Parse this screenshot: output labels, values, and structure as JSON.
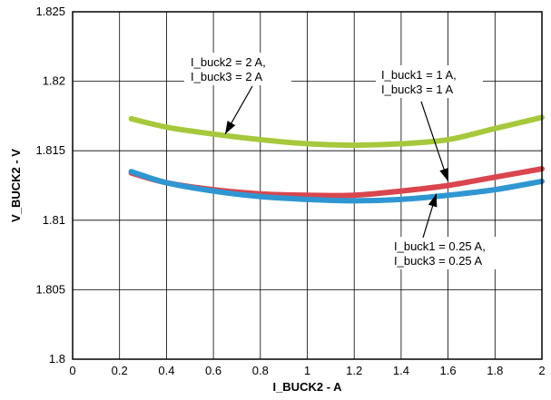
{
  "chart_data": {
    "type": "line",
    "xlabel": "I_BUCK2 - A",
    "ylabel": "V_BUCK2 - V",
    "xlim": [
      0,
      2
    ],
    "ylim": [
      1.8,
      1.825
    ],
    "x_ticks": [
      "0",
      "0.2",
      "0.4",
      "0.6",
      "0.8",
      "1",
      "1.2",
      "1.4",
      "1.6",
      "1.8",
      "2"
    ],
    "y_ticks": [
      "1.8",
      "1.805",
      "1.81",
      "1.815",
      "1.82",
      "1.825"
    ],
    "grid": true,
    "series": [
      {
        "color": "#a6c83c",
        "x": [
          0.25,
          0.4,
          0.6,
          0.8,
          1.0,
          1.2,
          1.4,
          1.6,
          1.8,
          2.0
        ],
        "y": [
          1.8173,
          1.8167,
          1.8162,
          1.8158,
          1.8155,
          1.8154,
          1.8155,
          1.8158,
          1.8166,
          1.8174
        ]
      },
      {
        "color": "#d9464e",
        "x": [
          0.25,
          0.4,
          0.6,
          0.8,
          1.0,
          1.2,
          1.4,
          1.6,
          1.8,
          2.0
        ],
        "y": [
          1.8134,
          1.8127,
          1.8122,
          1.8119,
          1.8118,
          1.8118,
          1.8121,
          1.8125,
          1.8131,
          1.8137
        ]
      },
      {
        "color": "#2f96d2",
        "x": [
          0.25,
          0.4,
          0.6,
          0.8,
          1.0,
          1.2,
          1.4,
          1.6,
          1.8,
          2.0
        ],
        "y": [
          1.8135,
          1.8127,
          1.8121,
          1.8117,
          1.8115,
          1.8114,
          1.8115,
          1.8118,
          1.8122,
          1.8128
        ]
      }
    ],
    "annotations": [
      {
        "lines": [
          "I_buck2 = 2 A,",
          "I_buck3 = 2 A"
        ],
        "arrow_to": [
          0.65,
          1.8162
        ]
      },
      {
        "lines": [
          "I_buck1 = 1 A,",
          "I_buck3 = 1 A"
        ],
        "arrow_to": [
          1.6,
          1.8128
        ]
      },
      {
        "lines": [
          "I_buck1 = 0.25 A,",
          "I_buck3 = 0.25 A"
        ],
        "arrow_to": [
          1.55,
          1.8119
        ]
      }
    ]
  }
}
